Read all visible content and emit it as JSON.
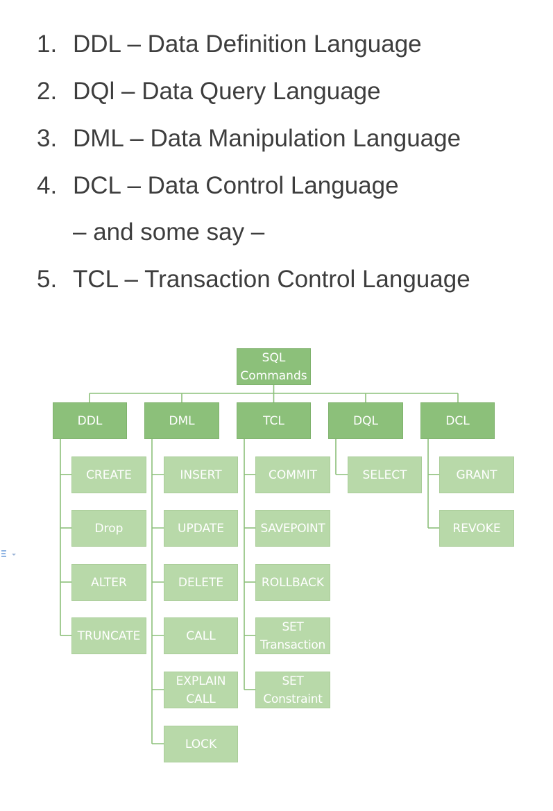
{
  "list": {
    "items": [
      {
        "number": "1.",
        "text": "DDL – Data Definition Language"
      },
      {
        "number": "2.",
        "text": "DQl – Data Query Language"
      },
      {
        "number": "3.",
        "text": "DML – Data Manipulation Language"
      },
      {
        "number": "4.",
        "text": "DCL – Data Control Language"
      },
      {
        "number": "",
        "text": "– and some say –"
      },
      {
        "number": "5.",
        "text": "TCL – Transaction Control Language"
      }
    ]
  },
  "diagram": {
    "root": {
      "line1": "SQL",
      "line2": "Commands"
    },
    "categories": [
      {
        "label": "DDL",
        "children": [
          {
            "line1": "CREATE"
          },
          {
            "line1": "Drop"
          },
          {
            "line1": "ALTER"
          },
          {
            "line1": "TRUNCATE"
          }
        ]
      },
      {
        "label": "DML",
        "children": [
          {
            "line1": "INSERT"
          },
          {
            "line1": "UPDATE"
          },
          {
            "line1": "DELETE"
          },
          {
            "line1": "CALL"
          },
          {
            "line1": "EXPLAIN",
            "line2": "CALL"
          },
          {
            "line1": "LOCK"
          }
        ]
      },
      {
        "label": "TCL",
        "children": [
          {
            "line1": "COMMIT"
          },
          {
            "line1": "SAVEPOINT"
          },
          {
            "line1": "ROLLBACK"
          },
          {
            "line1": "SET",
            "line2": "Transaction"
          },
          {
            "line1": "SET",
            "line2": "Constraint"
          }
        ]
      },
      {
        "label": "DQL",
        "children": [
          {
            "line1": "SELECT"
          }
        ]
      },
      {
        "label": "DCL",
        "children": [
          {
            "line1": "GRANT"
          },
          {
            "line1": "REVOKE"
          }
        ]
      }
    ],
    "colors": {
      "root": "#8cc07a",
      "category": "#8cc07a",
      "leaf": "#b8d9a9",
      "connector": "#8cc07a",
      "text": "#ffffff"
    }
  }
}
